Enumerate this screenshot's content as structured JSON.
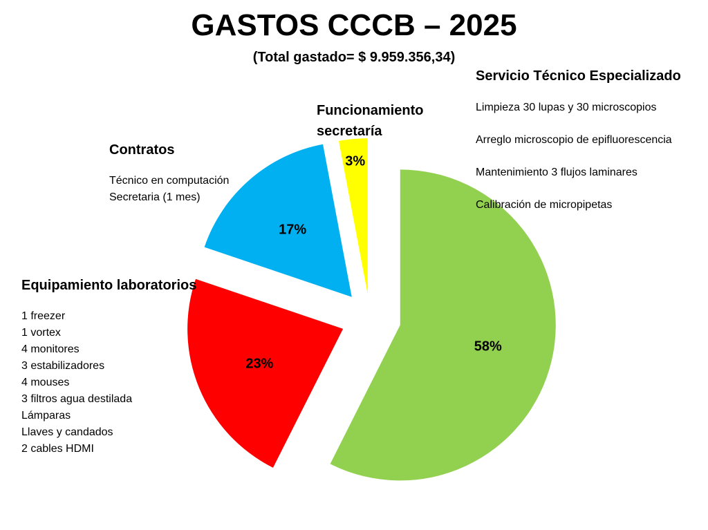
{
  "header": {
    "title": "GASTOS CCCB – 2025",
    "subtitle": "(Total  gastado= $ 9.959.356,34)"
  },
  "groups": {
    "servicio": {
      "title": "Servicio Técnico Especializado",
      "items": [
        "Limpieza 30 lupas y 30 microscopios",
        "Arreglo microscopio de epifluorescencia",
        "Mantenimiento 3 flujos laminares",
        "Calibración de micropipetas"
      ]
    },
    "funcionamiento": {
      "title_line1": "Funcionamiento",
      "title_line2": "secretaría"
    },
    "contratos": {
      "title": "Contratos",
      "items": [
        "Técnico en computación",
        "Secretaria (1 mes)"
      ]
    },
    "equipamiento": {
      "title": "Equipamiento laboratorios",
      "items": [
        "1 freezer",
        "1 vortex",
        "4 monitores",
        "3 estabilizadores",
        "4 mouses",
        "3 filtros agua destilada",
        "Lámparas",
        "Llaves y candados",
        "2 cables HDMI"
      ]
    }
  },
  "chart_data": {
    "type": "pie",
    "exploded": true,
    "start": "12 o'clock, clockwise",
    "slices": [
      {
        "category": "Servicio Técnico Especializado",
        "value": 58,
        "label": "58%",
        "color": "#92D050"
      },
      {
        "category": "Equipamiento laboratorios",
        "value": 23,
        "label": "23%",
        "color": "#FF0000"
      },
      {
        "category": "Contratos",
        "value": 17,
        "label": "17%",
        "color": "#00B0F0"
      },
      {
        "category": "Funcionamiento secretaría",
        "value": 3,
        "label": "3%",
        "color": "#FFFF00"
      }
    ]
  }
}
